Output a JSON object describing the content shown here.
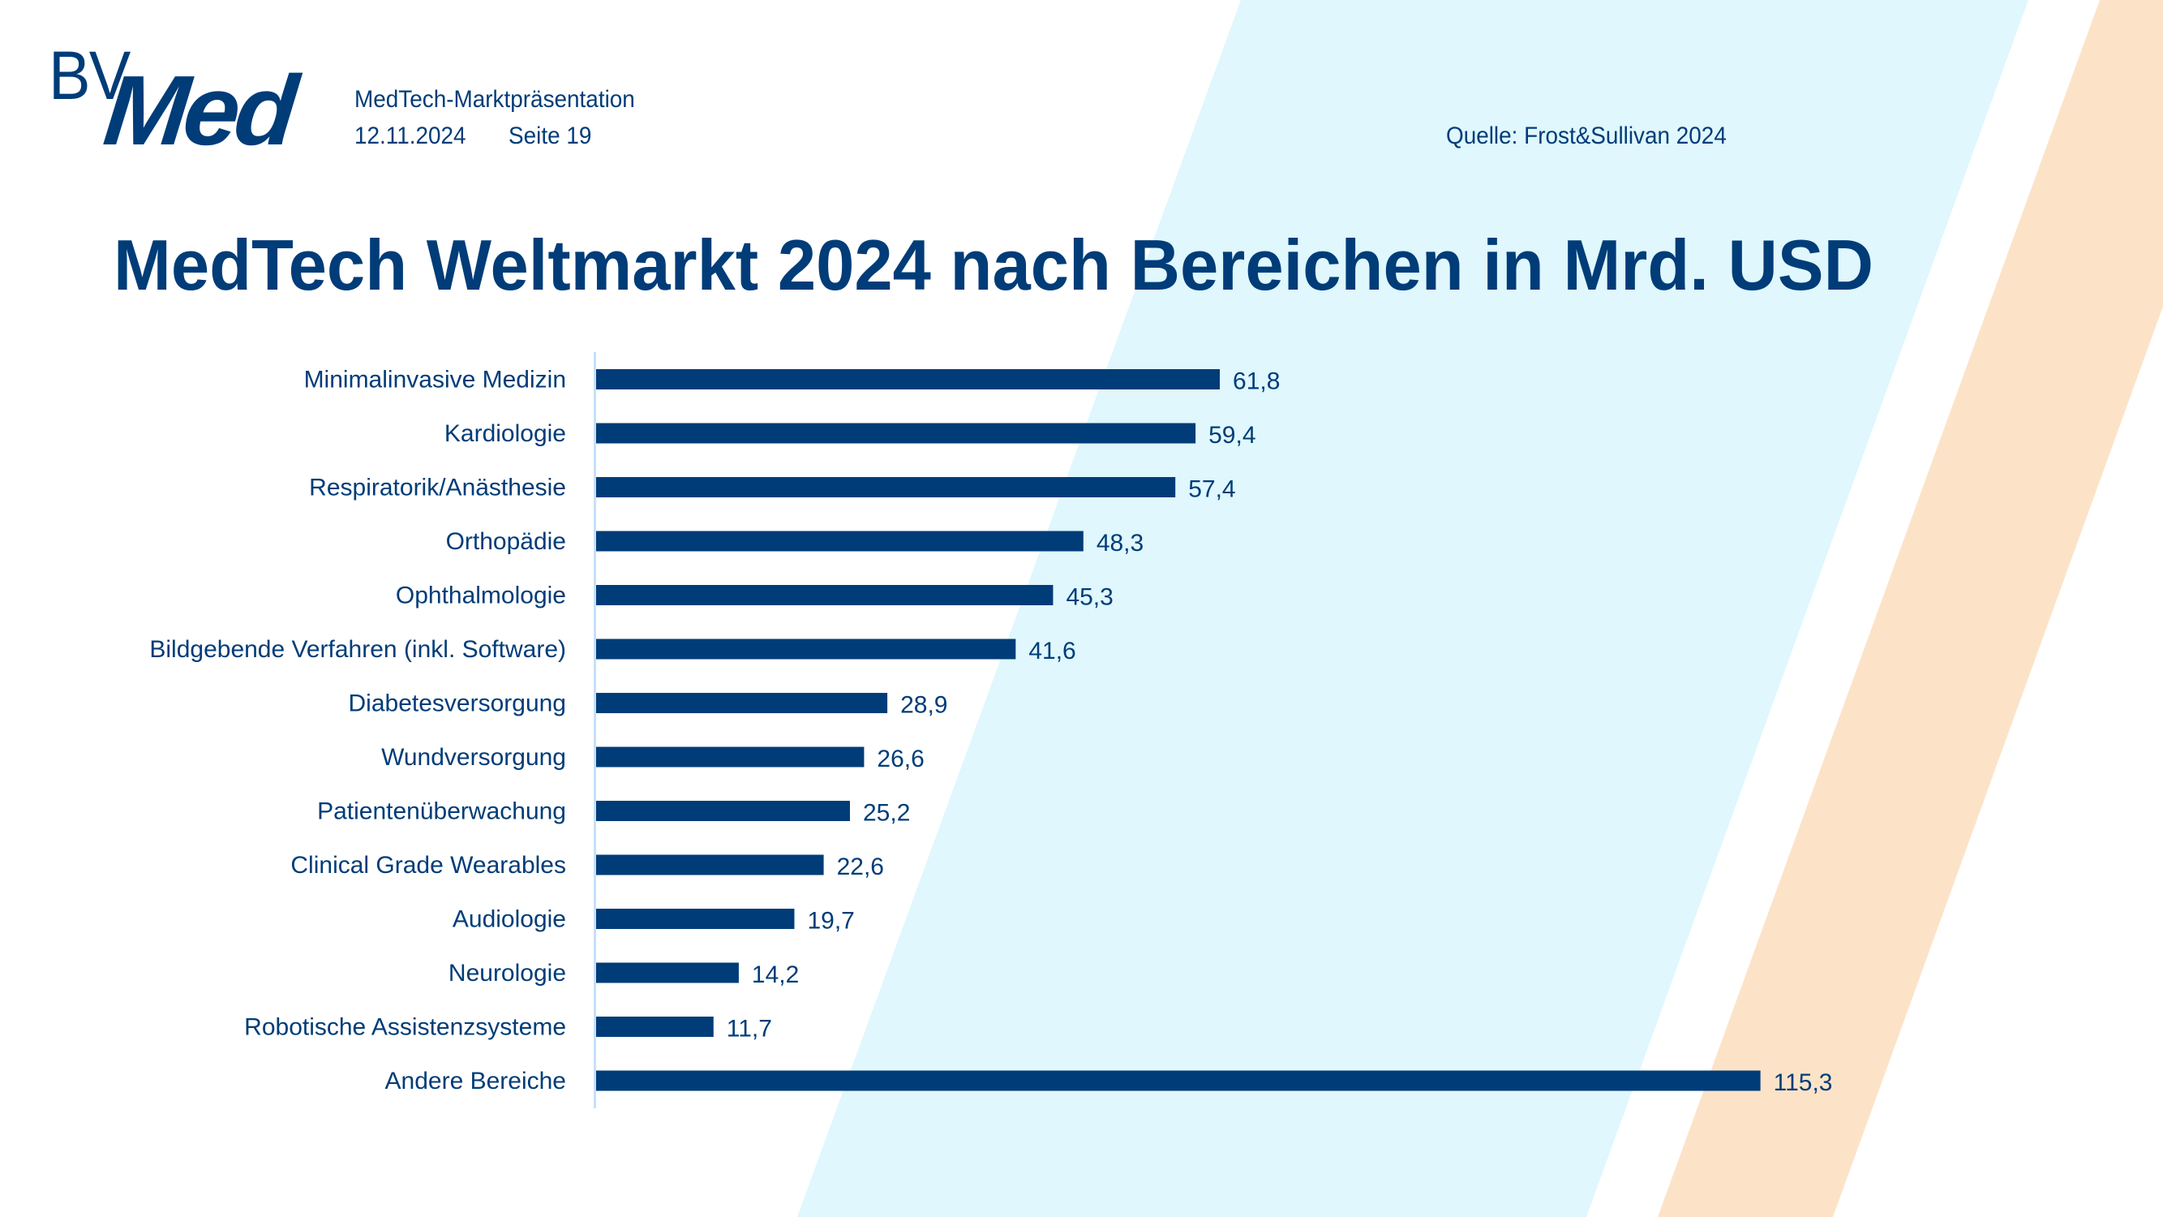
{
  "header": {
    "logo_prefix": "BV",
    "logo_main": "Med",
    "presentation_title": "MedTech-Marktpräsentation",
    "date": "12.11.2024",
    "page": "Seite 19",
    "source": "Quelle: Frost&Sullivan 2024"
  },
  "colors": {
    "primary": "#003c78",
    "bar": "#003c78",
    "axis": "#c5e0fb",
    "band_blue": "#dff7fd",
    "band_orange": "#fce3c8",
    "background": "#ffffff"
  },
  "chart_data": {
    "type": "bar",
    "orientation": "horizontal",
    "title": "MedTech Weltmarkt 2024 nach Bereichen in Mrd. USD",
    "xlabel": "",
    "ylabel": "",
    "unit": "Mrd. USD",
    "decimal_separator": ",",
    "xlim": [
      0,
      115.3
    ],
    "grid": false,
    "legend": "none",
    "categories": [
      "Minimalinvasive Medizin",
      "Kardiologie",
      "Respiratorik/Anästhesie",
      "Orthopädie",
      "Ophthalmologie",
      "Bildgebende Verfahren (inkl. Software)",
      "Diabetesversorgung",
      "Wundversorgung",
      "Patientenüberwachung",
      "Clinical Grade Wearables",
      "Audiologie",
      "Neurologie",
      "Robotische Assistenzsysteme",
      "Andere Bereiche"
    ],
    "values": [
      61.8,
      59.4,
      57.4,
      48.3,
      45.3,
      41.6,
      28.9,
      26.6,
      25.2,
      22.6,
      19.7,
      14.2,
      11.7,
      115.3
    ],
    "value_labels": [
      "61,8",
      "59,4",
      "57,4",
      "48,3",
      "45,3",
      "41,6",
      "28,9",
      "26,6",
      "25,2",
      "22,6",
      "19,7",
      "14,2",
      "11,7",
      "115,3"
    ]
  }
}
